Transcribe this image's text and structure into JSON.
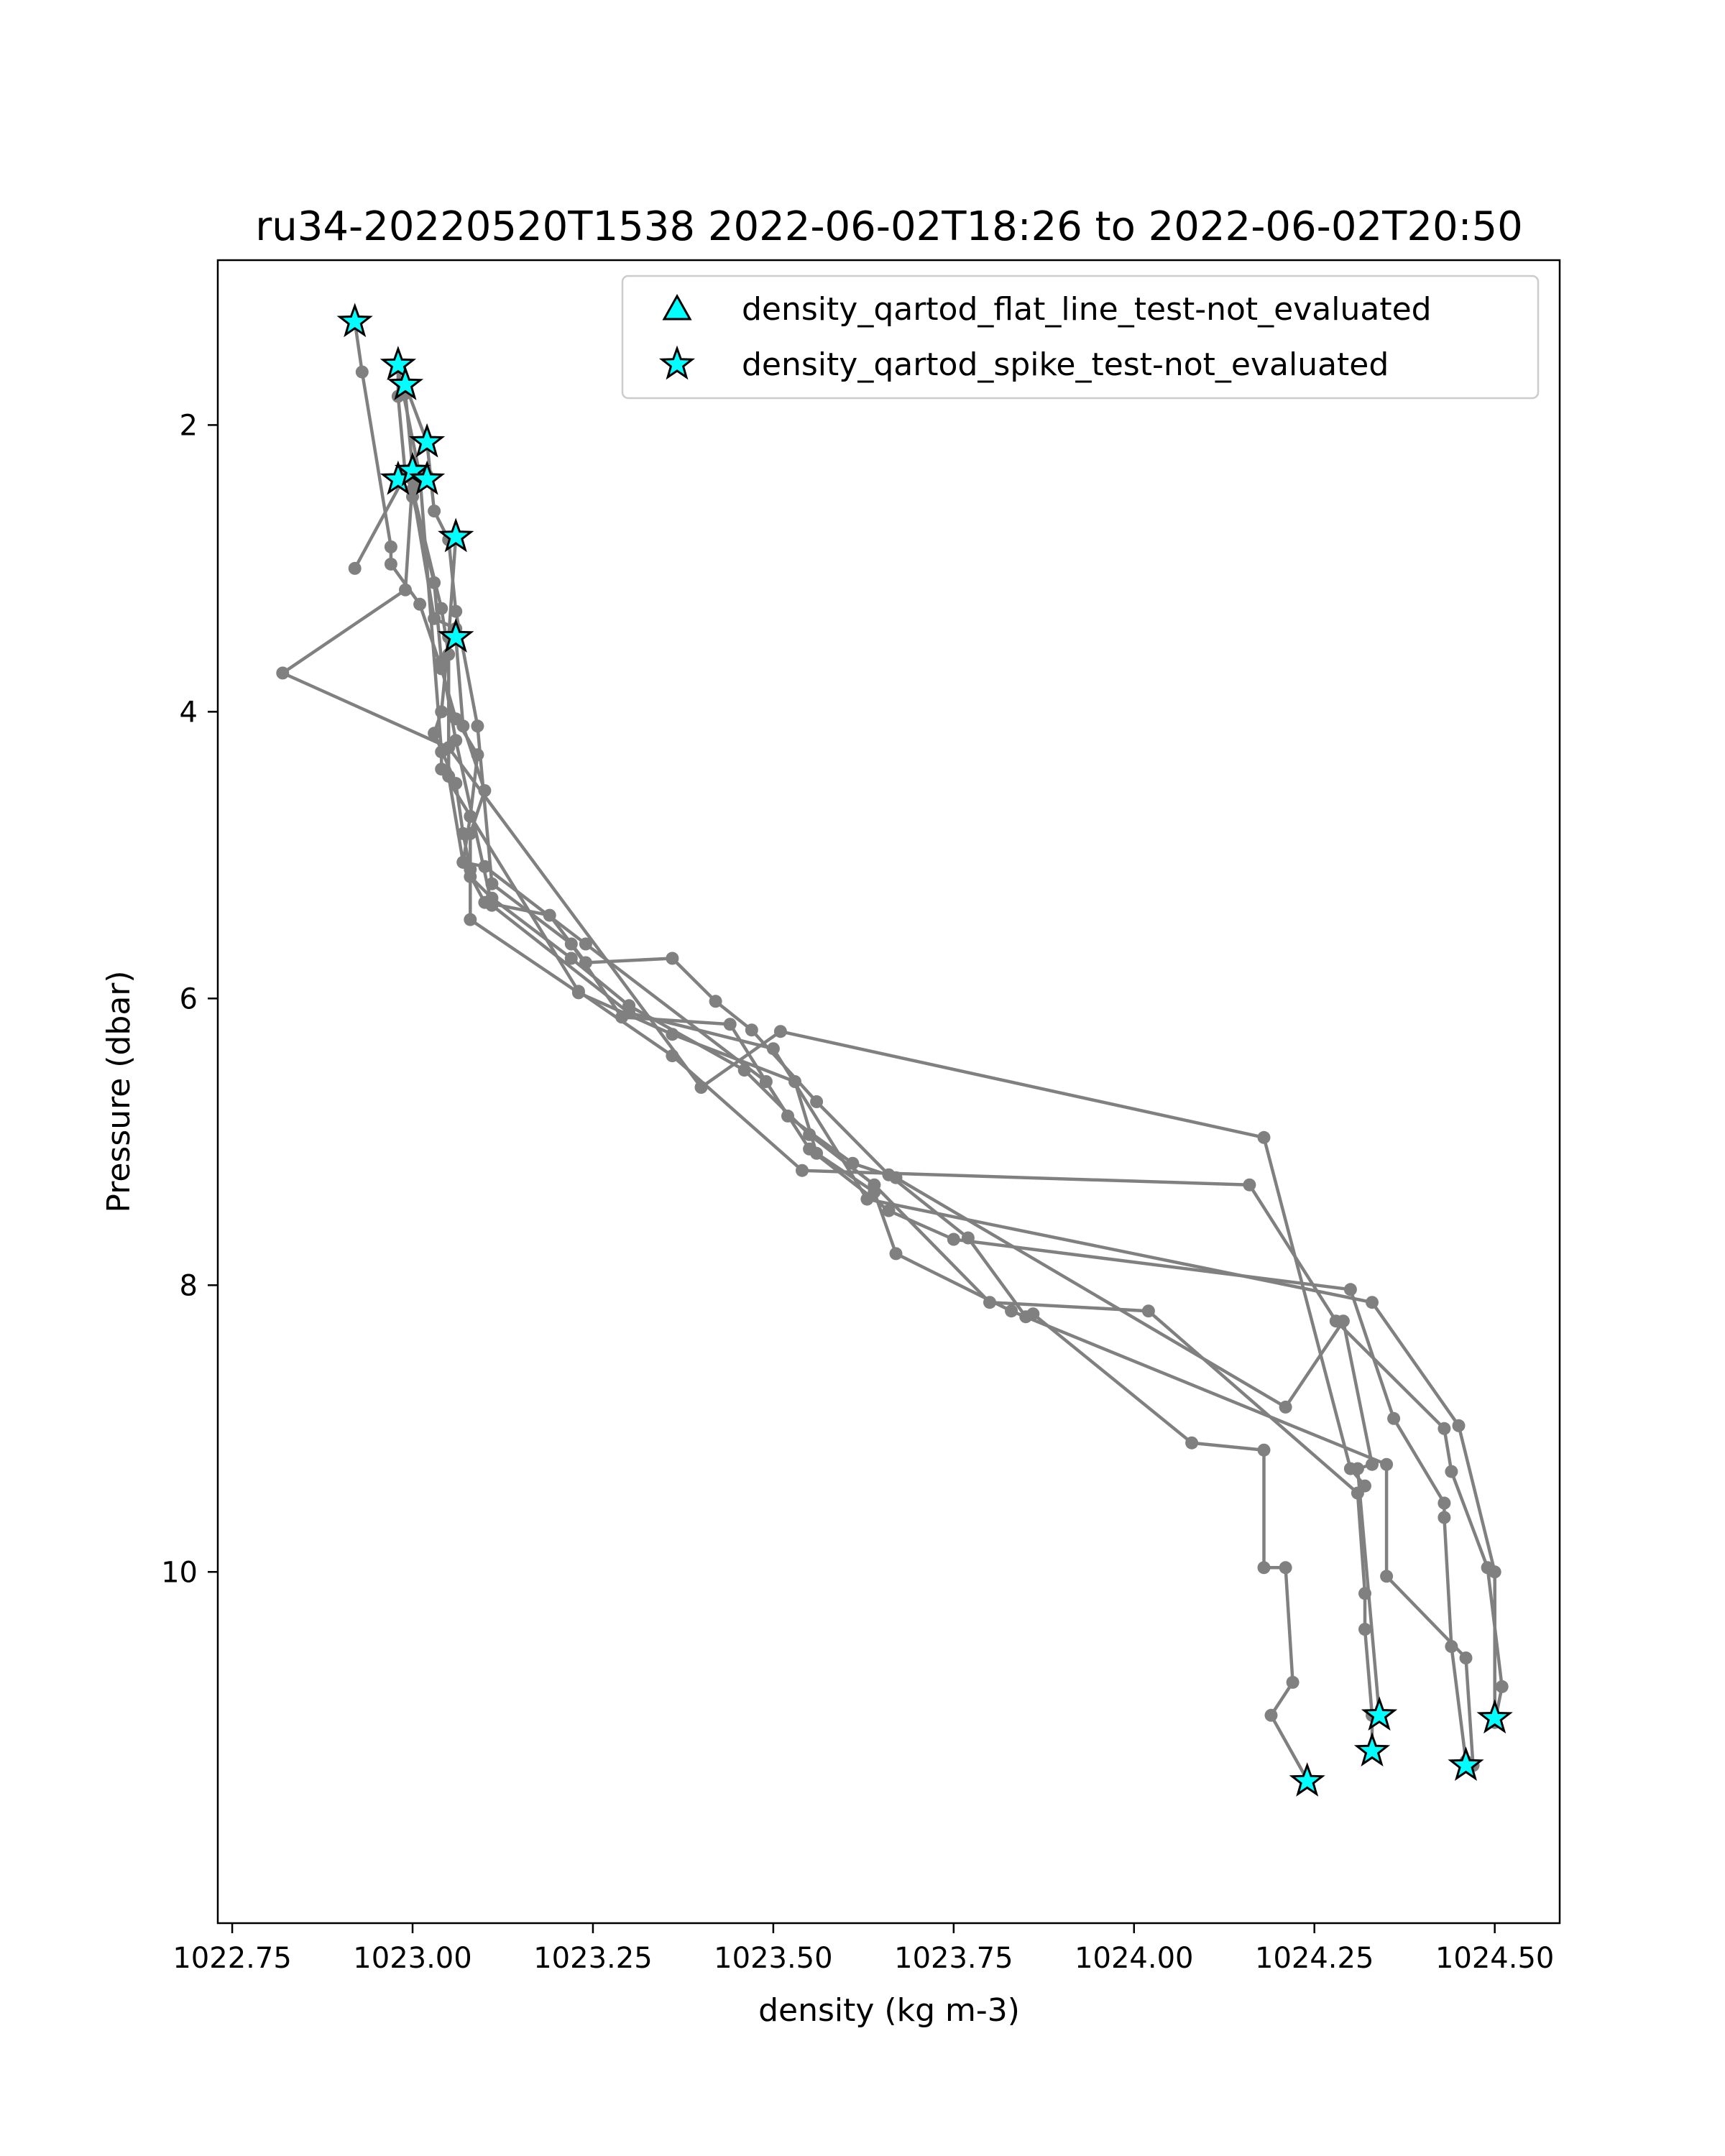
{
  "chart_data": {
    "type": "line",
    "title": "ru34-20220520T1538 2022-06-02T18:26 to 2022-06-02T20:50",
    "xlabel": "density (kg m-3)",
    "ylabel": "Pressure (dbar)",
    "xlim": [
      1022.73,
      1024.59
    ],
    "ylim": [
      12.45,
      0.85
    ],
    "y_inverted": true,
    "xticks": [
      1022.75,
      1023.0,
      1023.25,
      1023.5,
      1023.75,
      1024.0,
      1024.25,
      1024.5
    ],
    "xtick_labels": [
      "1022.75",
      "1023.00",
      "1023.25",
      "1023.50",
      "1023.75",
      "1024.00",
      "1024.25",
      "1024.50"
    ],
    "yticks": [
      2,
      4,
      6,
      8,
      10
    ],
    "ytick_labels": [
      "2",
      "4",
      "6",
      "8",
      "10"
    ],
    "grid": false,
    "legend_position": "top-right",
    "line_color": "#808080",
    "marker_color": "#00ffff",
    "legend": [
      {
        "label": "density_qartod_flat_line_test-not_evaluated",
        "marker": "triangle",
        "color": "#00ffff"
      },
      {
        "label": "density_qartod_spike_test-not_evaluated",
        "marker": "star",
        "color": "#00ffff"
      }
    ],
    "series": [
      {
        "points": [
          [
            1022.92,
            1.28
          ],
          [
            1022.93,
            1.63
          ],
          [
            1022.97,
            2.85
          ],
          [
            1022.97,
            2.97
          ],
          [
            1023.01,
            3.25
          ],
          [
            1023.04,
            3.7
          ],
          [
            1023.06,
            4.05
          ],
          [
            1023.09,
            4.3
          ],
          [
            1023.08,
            4.73
          ],
          [
            1023.07,
            5.05
          ],
          [
            1023.1,
            5.33
          ],
          [
            1023.19,
            5.42
          ],
          [
            1023.24,
            5.75
          ],
          [
            1023.36,
            5.72
          ],
          [
            1023.42,
            6.02
          ],
          [
            1023.47,
            6.22
          ],
          [
            1023.56,
            6.72
          ],
          [
            1023.66,
            7.23
          ],
          [
            1023.77,
            7.67
          ],
          [
            1023.85,
            8.22
          ],
          [
            1023.86,
            8.2
          ],
          [
            1024.08,
            9.1
          ],
          [
            1024.18,
            9.15
          ],
          [
            1024.18,
            9.97
          ],
          [
            1024.21,
            9.97
          ],
          [
            1024.22,
            10.77
          ],
          [
            1024.19,
            11.0
          ],
          [
            1024.24,
            11.45
          ]
        ]
      },
      {
        "points": [
          [
            1022.98,
            1.58
          ],
          [
            1022.98,
            1.8
          ],
          [
            1022.99,
            2.35
          ],
          [
            1022.92,
            3.0
          ],
          [
            1022.99,
            2.35
          ],
          [
            1023.0,
            2.45
          ],
          [
            1023.03,
            3.35
          ],
          [
            1023.06,
            3.42
          ],
          [
            1023.06,
            3.48
          ],
          [
            1023.07,
            4.1
          ],
          [
            1023.1,
            4.55
          ],
          [
            1023.08,
            4.85
          ],
          [
            1023.08,
            5.15
          ],
          [
            1023.11,
            5.3
          ],
          [
            1023.22,
            5.72
          ],
          [
            1023.3,
            6.05
          ],
          [
            1023.46,
            6.5
          ],
          [
            1023.55,
            6.95
          ],
          [
            1023.64,
            7.3
          ],
          [
            1023.8,
            8.12
          ],
          [
            1024.02,
            8.18
          ],
          [
            1024.31,
            9.45
          ],
          [
            1024.32,
            10.15
          ],
          [
            1024.32,
            10.4
          ],
          [
            1024.33,
            11.0
          ],
          [
            1024.33,
            11.25
          ]
        ]
      },
      {
        "points": [
          [
            1022.99,
            1.72
          ],
          [
            1023.02,
            2.12
          ],
          [
            1023.03,
            2.6
          ],
          [
            1023.05,
            2.8
          ],
          [
            1023.06,
            3.3
          ],
          [
            1023.09,
            4.1
          ],
          [
            1023.11,
            5.2
          ],
          [
            1023.22,
            5.62
          ],
          [
            1023.29,
            6.13
          ],
          [
            1023.44,
            6.18
          ],
          [
            1023.52,
            6.82
          ],
          [
            1023.61,
            7.15
          ],
          [
            1023.67,
            7.25
          ],
          [
            1024.21,
            8.85
          ],
          [
            1024.29,
            8.25
          ],
          [
            1024.33,
            9.25
          ],
          [
            1024.31,
            9.28
          ],
          [
            1024.34,
            11.0
          ]
        ]
      },
      {
        "points": [
          [
            1022.99,
            1.78
          ],
          [
            1023.0,
            2.3
          ],
          [
            1023.02,
            2.35
          ],
          [
            1023.0,
            2.45
          ],
          [
            1023.04,
            3.28
          ],
          [
            1023.05,
            3.6
          ],
          [
            1023.05,
            4.45
          ],
          [
            1023.07,
            5.05
          ],
          [
            1023.1,
            5.08
          ],
          [
            1023.24,
            5.62
          ],
          [
            1023.49,
            6.58
          ],
          [
            1023.55,
            7.05
          ],
          [
            1023.66,
            7.48
          ],
          [
            1023.75,
            7.68
          ],
          [
            1024.3,
            8.03
          ],
          [
            1024.36,
            8.93
          ],
          [
            1024.43,
            9.52
          ],
          [
            1024.43,
            9.62
          ],
          [
            1024.44,
            10.52
          ],
          [
            1024.46,
            11.32
          ]
        ]
      },
      {
        "points": [
          [
            1023.06,
            2.78
          ],
          [
            1023.05,
            3.48
          ],
          [
            1023.04,
            4.0
          ],
          [
            1023.03,
            4.15
          ],
          [
            1023.06,
            4.5
          ],
          [
            1023.07,
            4.85
          ],
          [
            1023.08,
            5.1
          ],
          [
            1023.08,
            5.45
          ],
          [
            1023.23,
            5.96
          ],
          [
            1023.36,
            6.25
          ],
          [
            1023.53,
            6.58
          ],
          [
            1023.56,
            7.08
          ],
          [
            1023.64,
            7.35
          ],
          [
            1023.67,
            7.78
          ],
          [
            1023.83,
            8.18
          ],
          [
            1024.35,
            9.25
          ],
          [
            1024.35,
            10.03
          ],
          [
            1024.46,
            10.6
          ],
          [
            1024.47,
            11.35
          ]
        ]
      },
      {
        "points": [
          [
            1023.0,
            2.38
          ],
          [
            1022.99,
            3.15
          ],
          [
            1022.82,
            3.73
          ],
          [
            1023.05,
            4.25
          ],
          [
            1023.4,
            6.62
          ],
          [
            1023.51,
            6.23
          ],
          [
            1024.18,
            6.97
          ],
          [
            1024.3,
            9.28
          ],
          [
            1024.32,
            9.4
          ]
        ]
      },
      {
        "points": [
          [
            1022.98,
            1.6
          ],
          [
            1023.01,
            2.35
          ],
          [
            1023.04,
            4.28
          ],
          [
            1023.04,
            4.4
          ],
          [
            1023.23,
            5.95
          ],
          [
            1023.36,
            6.4
          ],
          [
            1023.54,
            7.2
          ],
          [
            1024.16,
            7.3
          ],
          [
            1024.28,
            8.25
          ],
          [
            1024.43,
            9.0
          ],
          [
            1024.44,
            9.3
          ],
          [
            1024.49,
            9.97
          ],
          [
            1024.51,
            10.8
          ],
          [
            1024.5,
            11.05
          ]
        ]
      },
      {
        "points": [
          [
            1023.0,
            2.5
          ],
          [
            1023.03,
            3.1
          ],
          [
            1023.04,
            3.65
          ],
          [
            1023.06,
            4.2
          ],
          [
            1023.11,
            5.35
          ],
          [
            1023.3,
            6.1
          ],
          [
            1023.5,
            6.35
          ],
          [
            1023.63,
            7.4
          ],
          [
            1024.33,
            8.12
          ],
          [
            1024.45,
            8.98
          ],
          [
            1024.5,
            10.0
          ],
          [
            1024.5,
            11.05
          ]
        ]
      }
    ],
    "markers": [
      {
        "series": "density_qartod_spike_test-not_evaluated",
        "points": [
          [
            1022.92,
            1.28
          ],
          [
            1022.98,
            1.58
          ],
          [
            1022.99,
            1.72
          ],
          [
            1023.02,
            2.12
          ],
          [
            1022.98,
            2.38
          ],
          [
            1023.0,
            2.32
          ],
          [
            1023.02,
            2.38
          ],
          [
            1023.06,
            2.78
          ],
          [
            1023.06,
            3.48
          ],
          [
            1024.24,
            11.46
          ],
          [
            1024.34,
            11.0
          ],
          [
            1024.33,
            11.25
          ],
          [
            1024.46,
            11.35
          ],
          [
            1024.5,
            11.02
          ]
        ]
      }
    ]
  }
}
